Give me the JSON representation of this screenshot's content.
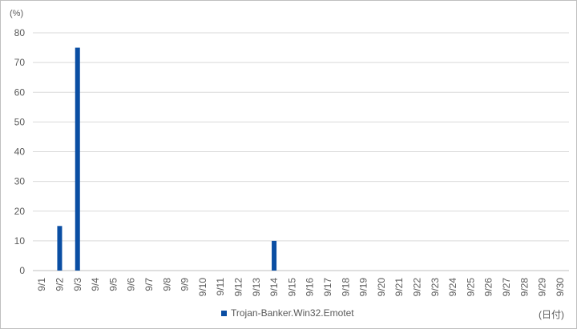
{
  "chart_data": {
    "type": "bar",
    "yunit": "(%)",
    "xunit": "(日付)",
    "ylim": [
      0,
      80
    ],
    "yticks": [
      0,
      10,
      20,
      30,
      40,
      50,
      60,
      70,
      80
    ],
    "grid": true,
    "legend_position": "bottom",
    "categories": [
      "9/1",
      "9/2",
      "9/3",
      "9/4",
      "9/5",
      "9/6",
      "9/7",
      "9/8",
      "9/9",
      "9/10",
      "9/11",
      "9/12",
      "9/13",
      "9/14",
      "9/15",
      "9/16",
      "9/17",
      "9/18",
      "9/19",
      "9/20",
      "9/21",
      "9/22",
      "9/23",
      "9/24",
      "9/25",
      "9/26",
      "9/27",
      "9/28",
      "9/29",
      "9/30"
    ],
    "series": [
      {
        "name": "Trojan-Banker.Win32.Emotet",
        "color": "#0a4ea3",
        "values": [
          0,
          15,
          75,
          0,
          0,
          0,
          0,
          0,
          0,
          0,
          0,
          0,
          0,
          10,
          0,
          0,
          0,
          0,
          0,
          0,
          0,
          0,
          0,
          0,
          0,
          0,
          0,
          0,
          0,
          0
        ]
      }
    ]
  }
}
